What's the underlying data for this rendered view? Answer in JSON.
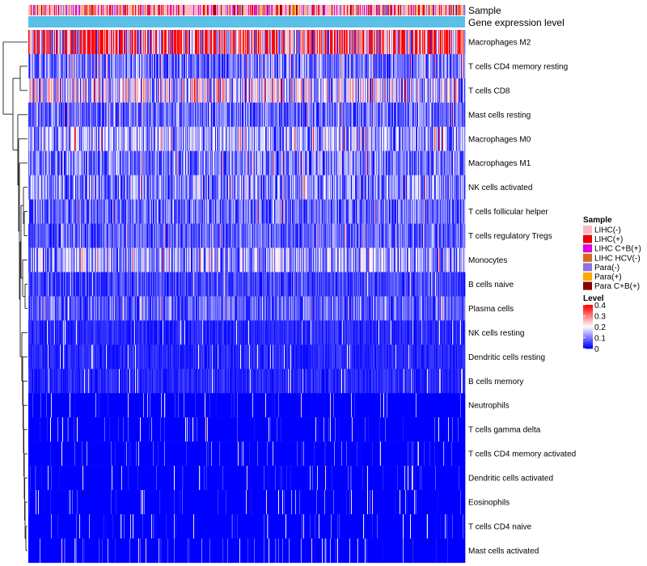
{
  "chart_data": {
    "type": "heatmap",
    "title": "",
    "n_samples": 540,
    "annotation_tracks": [
      {
        "name": "Sample"
      },
      {
        "name": "Gene expression level"
      }
    ],
    "rows": [
      "Macrophages M2",
      "T cells CD4 memory resting",
      "T cells CD8",
      "Mast cells resting",
      "Macrophages M0",
      "Macrophages M1",
      "NK cells activated",
      "T cells follicular helper",
      "T cells regulatory  Tregs",
      "Monocytes",
      "B cells naive",
      "Plasma cells",
      "NK cells resting",
      "Dendritic cells resting",
      "B cells memory",
      "Neutrophils",
      "T cells gamma delta",
      "T cells CD4 memory activated",
      "Dendritic cells activated",
      "Eosinophils",
      "T cells CD4 naive",
      "Mast cells activated"
    ],
    "row_mean_level": [
      0.3,
      0.09,
      0.17,
      0.08,
      0.12,
      0.09,
      0.1,
      0.08,
      0.07,
      0.12,
      0.05,
      0.07,
      0.03,
      0.03,
      0.03,
      0.01,
      0.01,
      0.01,
      0.01,
      0.005,
      0.01,
      0.01
    ],
    "legend_sample": {
      "title": "Sample",
      "entries": [
        {
          "label": "LIHC(-)",
          "color": "#FFB6C1"
        },
        {
          "label": "LIHC(+)",
          "color": "#EE0000"
        },
        {
          "label": "LIHC C+B(+)",
          "color": "#DD00DD"
        },
        {
          "label": "LIHC HCV(-)",
          "color": "#D2691E"
        },
        {
          "label": "Para(-)",
          "color": "#9370DB"
        },
        {
          "label": "Para(+)",
          "color": "#FFA500"
        },
        {
          "label": "Para C+B(+)",
          "color": "#8B0000"
        }
      ]
    },
    "legend_level": {
      "title": "Level",
      "ticks": [
        "0.4",
        "0.3",
        "0.2",
        "0.1",
        "0"
      ],
      "tick_values": [
        0.4,
        0.3,
        0.2,
        0.1,
        0
      ],
      "range": [
        0,
        0.4
      ],
      "colors": {
        "low": "#0000FF",
        "mid": "#FFFFFF",
        "high": "#FF0000"
      }
    },
    "expression_track_color": "#5BC0E8"
  }
}
